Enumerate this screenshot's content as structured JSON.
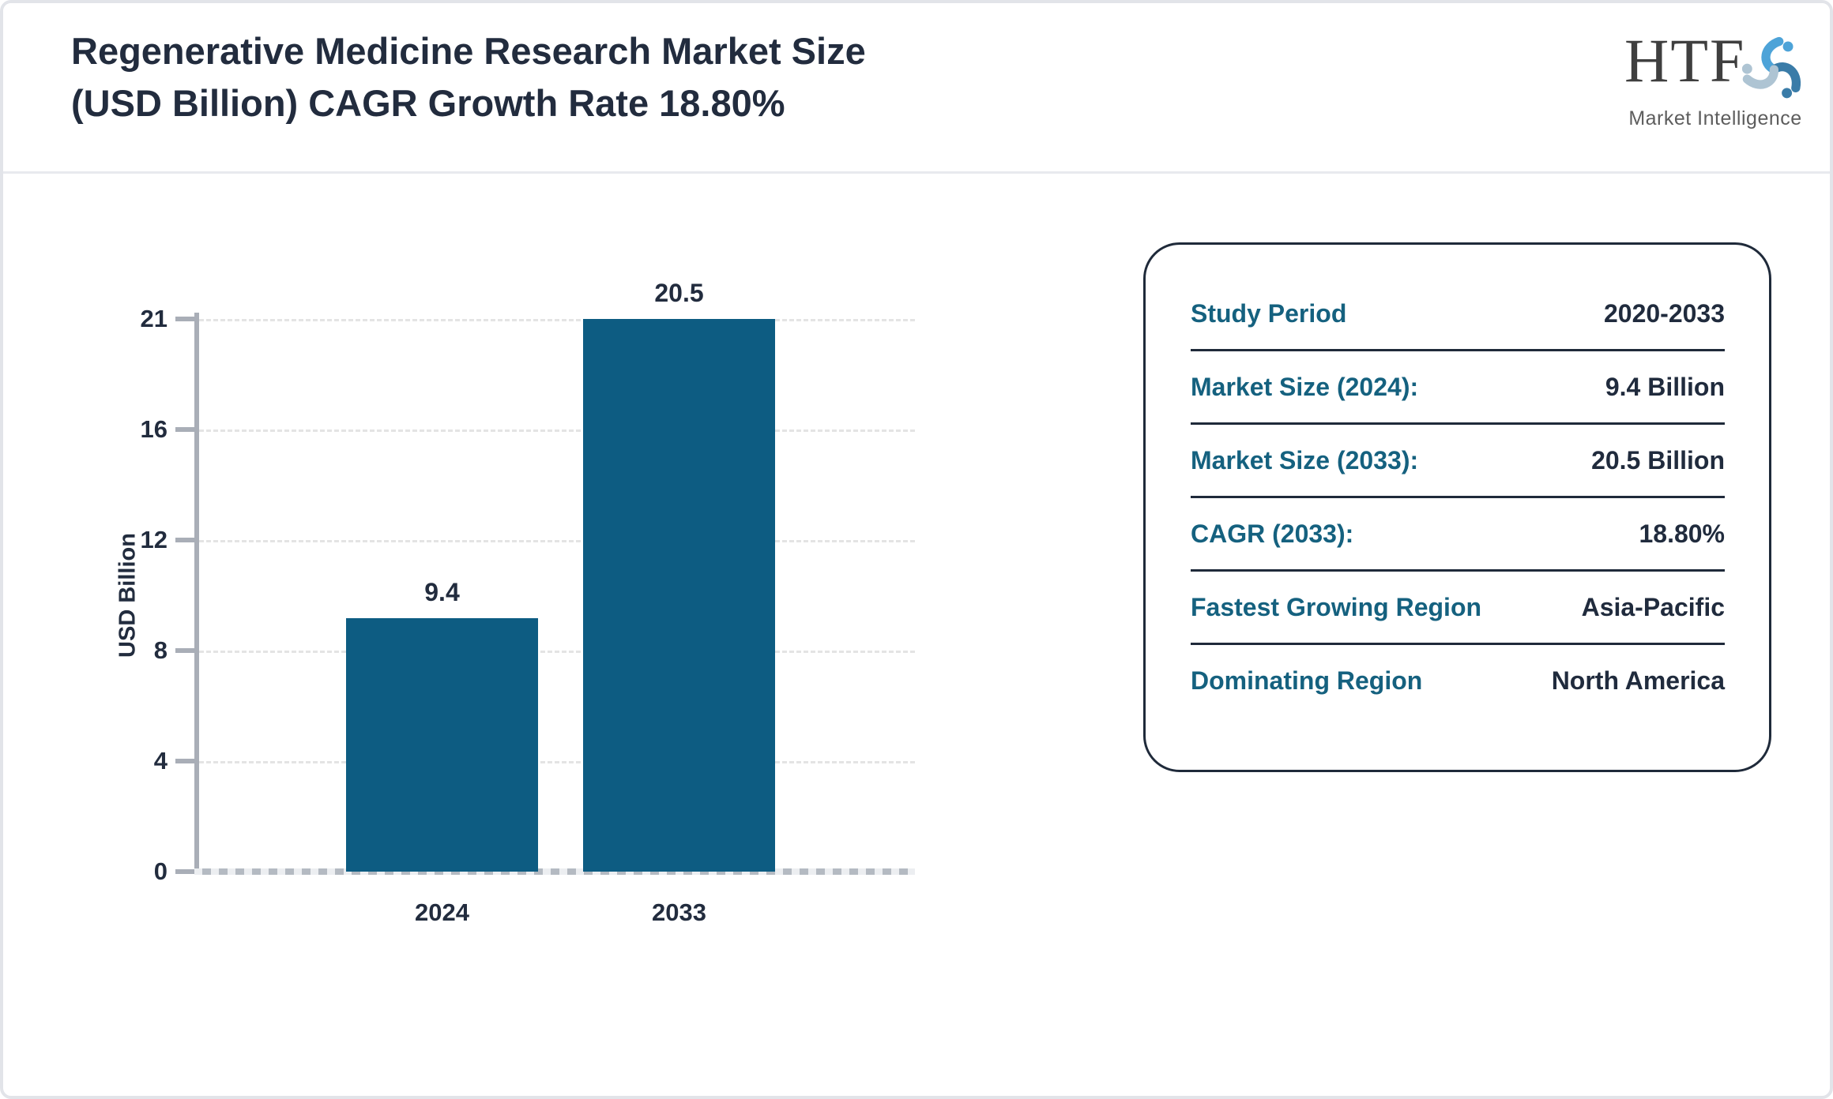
{
  "header": {
    "title": "Regenerative Medicine Research Market Size (USD Billion) CAGR Growth Rate 18.80%",
    "title_lines": [
      "Regenerative Medicine Research Market Size",
      "(USD Billion) CAGR Growth Rate 18.80%"
    ],
    "logo": {
      "text": "HTF",
      "subtext": "Market Intelligence"
    }
  },
  "chart_data": {
    "type": "bar",
    "title": "Regenerative Medicine Research Market Size (USD Billion) CAGR Growth Rate 18.80%",
    "categories": [
      "2024",
      "2033"
    ],
    "values": [
      9.4,
      20.5
    ],
    "value_labels": [
      "9.4",
      "20.5"
    ],
    "xlabel": "",
    "ylabel": "USD Billion",
    "yticks": [
      0,
      4,
      8,
      12,
      16,
      21
    ],
    "ylim": [
      0,
      21
    ],
    "grid": "horizontal-dashed",
    "legend": "none",
    "bar_color": "#0d5c82"
  },
  "info_panel": {
    "rows": [
      {
        "label": "Study Period",
        "value": "2020-2033"
      },
      {
        "label": "Market Size (2024):",
        "value": "9.4 Billion"
      },
      {
        "label": "Market Size (2033):",
        "value": "20.5 Billion"
      },
      {
        "label": "CAGR (2033):",
        "value": "18.80%"
      },
      {
        "label": "Fastest Growing Region",
        "value": "Asia-Pacific"
      },
      {
        "label": "Dominating Region",
        "value": "North America"
      }
    ]
  },
  "colors": {
    "bar": "#0d5c82",
    "label_teal": "#15617f",
    "text_dark": "#222c3e",
    "axis_gray": "#a9aeb7",
    "grid_gray": "#e4e4e4",
    "page_border": "#e2e4e9",
    "logo_blue_light": "#4da3d8",
    "logo_blue_dark": "#3a7ca8",
    "logo_blue_pale": "#aec4d3"
  }
}
